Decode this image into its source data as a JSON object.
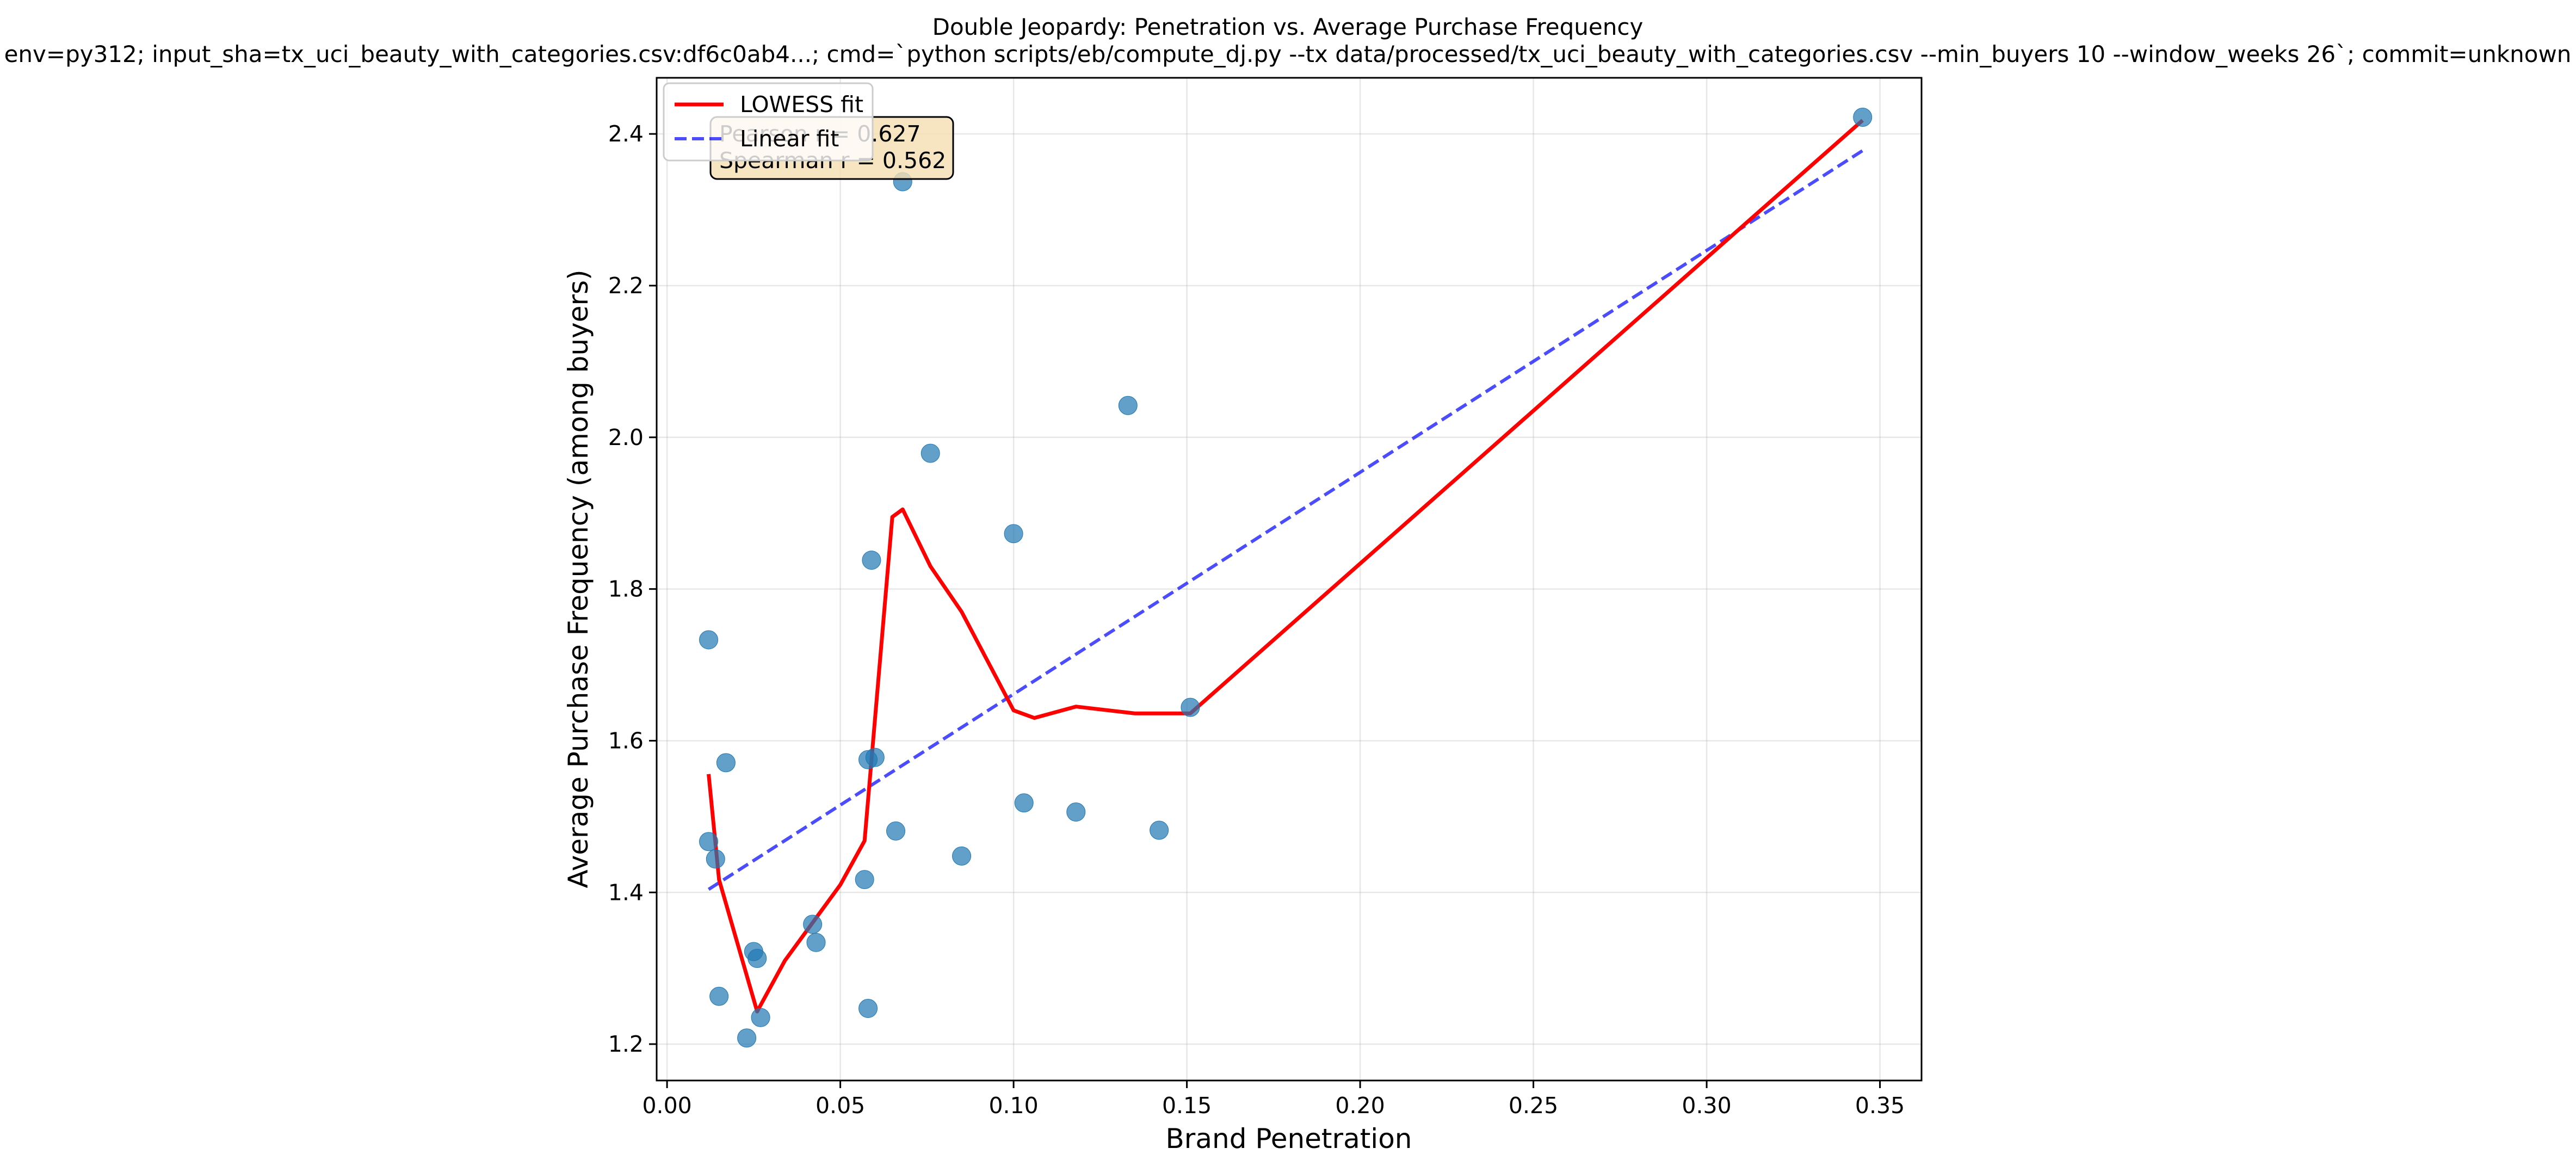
{
  "title": "Double Jeopardy: Penetration vs. Average Purchase Frequency",
  "subtitle": "env=py312; input_sha=tx_uci_beauty_with_categories.csv:df6c0ab4...; cmd=`python scripts/eb/compute_dj.py --tx data/processed/tx_uci_beauty_with_categories.csv --min_buyers 10 --window_weeks 26`; commit=unknown",
  "chart_data": {
    "type": "scatter",
    "title": "Double Jeopardy: Penetration vs. Average Purchase Frequency",
    "xlabel": "Brand Penetration",
    "ylabel": "Average Purchase Frequency (among buyers)",
    "xlim": [
      -0.003,
      0.362
    ],
    "ylim": [
      1.152,
      2.474
    ],
    "xticks": [
      0.0,
      0.05,
      0.1,
      0.15,
      0.2,
      0.25,
      0.3,
      0.35
    ],
    "xtick_labels": [
      "0.00",
      "0.05",
      "0.10",
      "0.15",
      "0.20",
      "0.25",
      "0.30",
      "0.35"
    ],
    "yticks": [
      1.2,
      1.4,
      1.6,
      1.8,
      2.0,
      2.2,
      2.4
    ],
    "ytick_labels": [
      "1.2",
      "1.4",
      "1.6",
      "1.8",
      "2.0",
      "2.2",
      "2.4"
    ],
    "grid": true,
    "legend_position": "top-left",
    "colors": {
      "points": "#1f77b4",
      "lowess": "#ff0000",
      "linear": "#0000ff",
      "stats_box_fill": "#f5deb3"
    },
    "points": [
      {
        "x": 0.345,
        "y": 2.422
      },
      {
        "x": 0.068,
        "y": 2.337
      },
      {
        "x": 0.133,
        "y": 2.042
      },
      {
        "x": 0.076,
        "y": 1.979
      },
      {
        "x": 0.1,
        "y": 1.873
      },
      {
        "x": 0.059,
        "y": 1.838
      },
      {
        "x": 0.012,
        "y": 1.733
      },
      {
        "x": 0.151,
        "y": 1.644
      },
      {
        "x": 0.017,
        "y": 1.571
      },
      {
        "x": 0.058,
        "y": 1.575
      },
      {
        "x": 0.06,
        "y": 1.578
      },
      {
        "x": 0.103,
        "y": 1.518
      },
      {
        "x": 0.118,
        "y": 1.506
      },
      {
        "x": 0.066,
        "y": 1.481
      },
      {
        "x": 0.142,
        "y": 1.482
      },
      {
        "x": 0.012,
        "y": 1.467
      },
      {
        "x": 0.014,
        "y": 1.444
      },
      {
        "x": 0.085,
        "y": 1.448
      },
      {
        "x": 0.057,
        "y": 1.417
      },
      {
        "x": 0.042,
        "y": 1.358
      },
      {
        "x": 0.043,
        "y": 1.334
      },
      {
        "x": 0.025,
        "y": 1.322
      },
      {
        "x": 0.026,
        "y": 1.313
      },
      {
        "x": 0.015,
        "y": 1.263
      },
      {
        "x": 0.058,
        "y": 1.247
      },
      {
        "x": 0.027,
        "y": 1.235
      },
      {
        "x": 0.023,
        "y": 1.208
      }
    ],
    "series": [
      {
        "name": "LOWESS fit",
        "style": "solid",
        "x": [
          0.012,
          0.015,
          0.026,
          0.034,
          0.05,
          0.057,
          0.065,
          0.068,
          0.076,
          0.085,
          0.1,
          0.106,
          0.118,
          0.135,
          0.151,
          0.345
        ],
        "y": [
          1.556,
          1.417,
          1.243,
          1.31,
          1.41,
          1.468,
          1.895,
          1.905,
          1.83,
          1.77,
          1.64,
          1.63,
          1.645,
          1.636,
          1.636,
          2.418
        ]
      },
      {
        "name": "Linear fit",
        "style": "dashed",
        "x": [
          0.012,
          0.345
        ],
        "y": [
          1.404,
          2.378
        ]
      }
    ],
    "annotations": [
      {
        "text": "Pearson r = 0.627"
      },
      {
        "text": "Spearman r = 0.562"
      }
    ]
  }
}
